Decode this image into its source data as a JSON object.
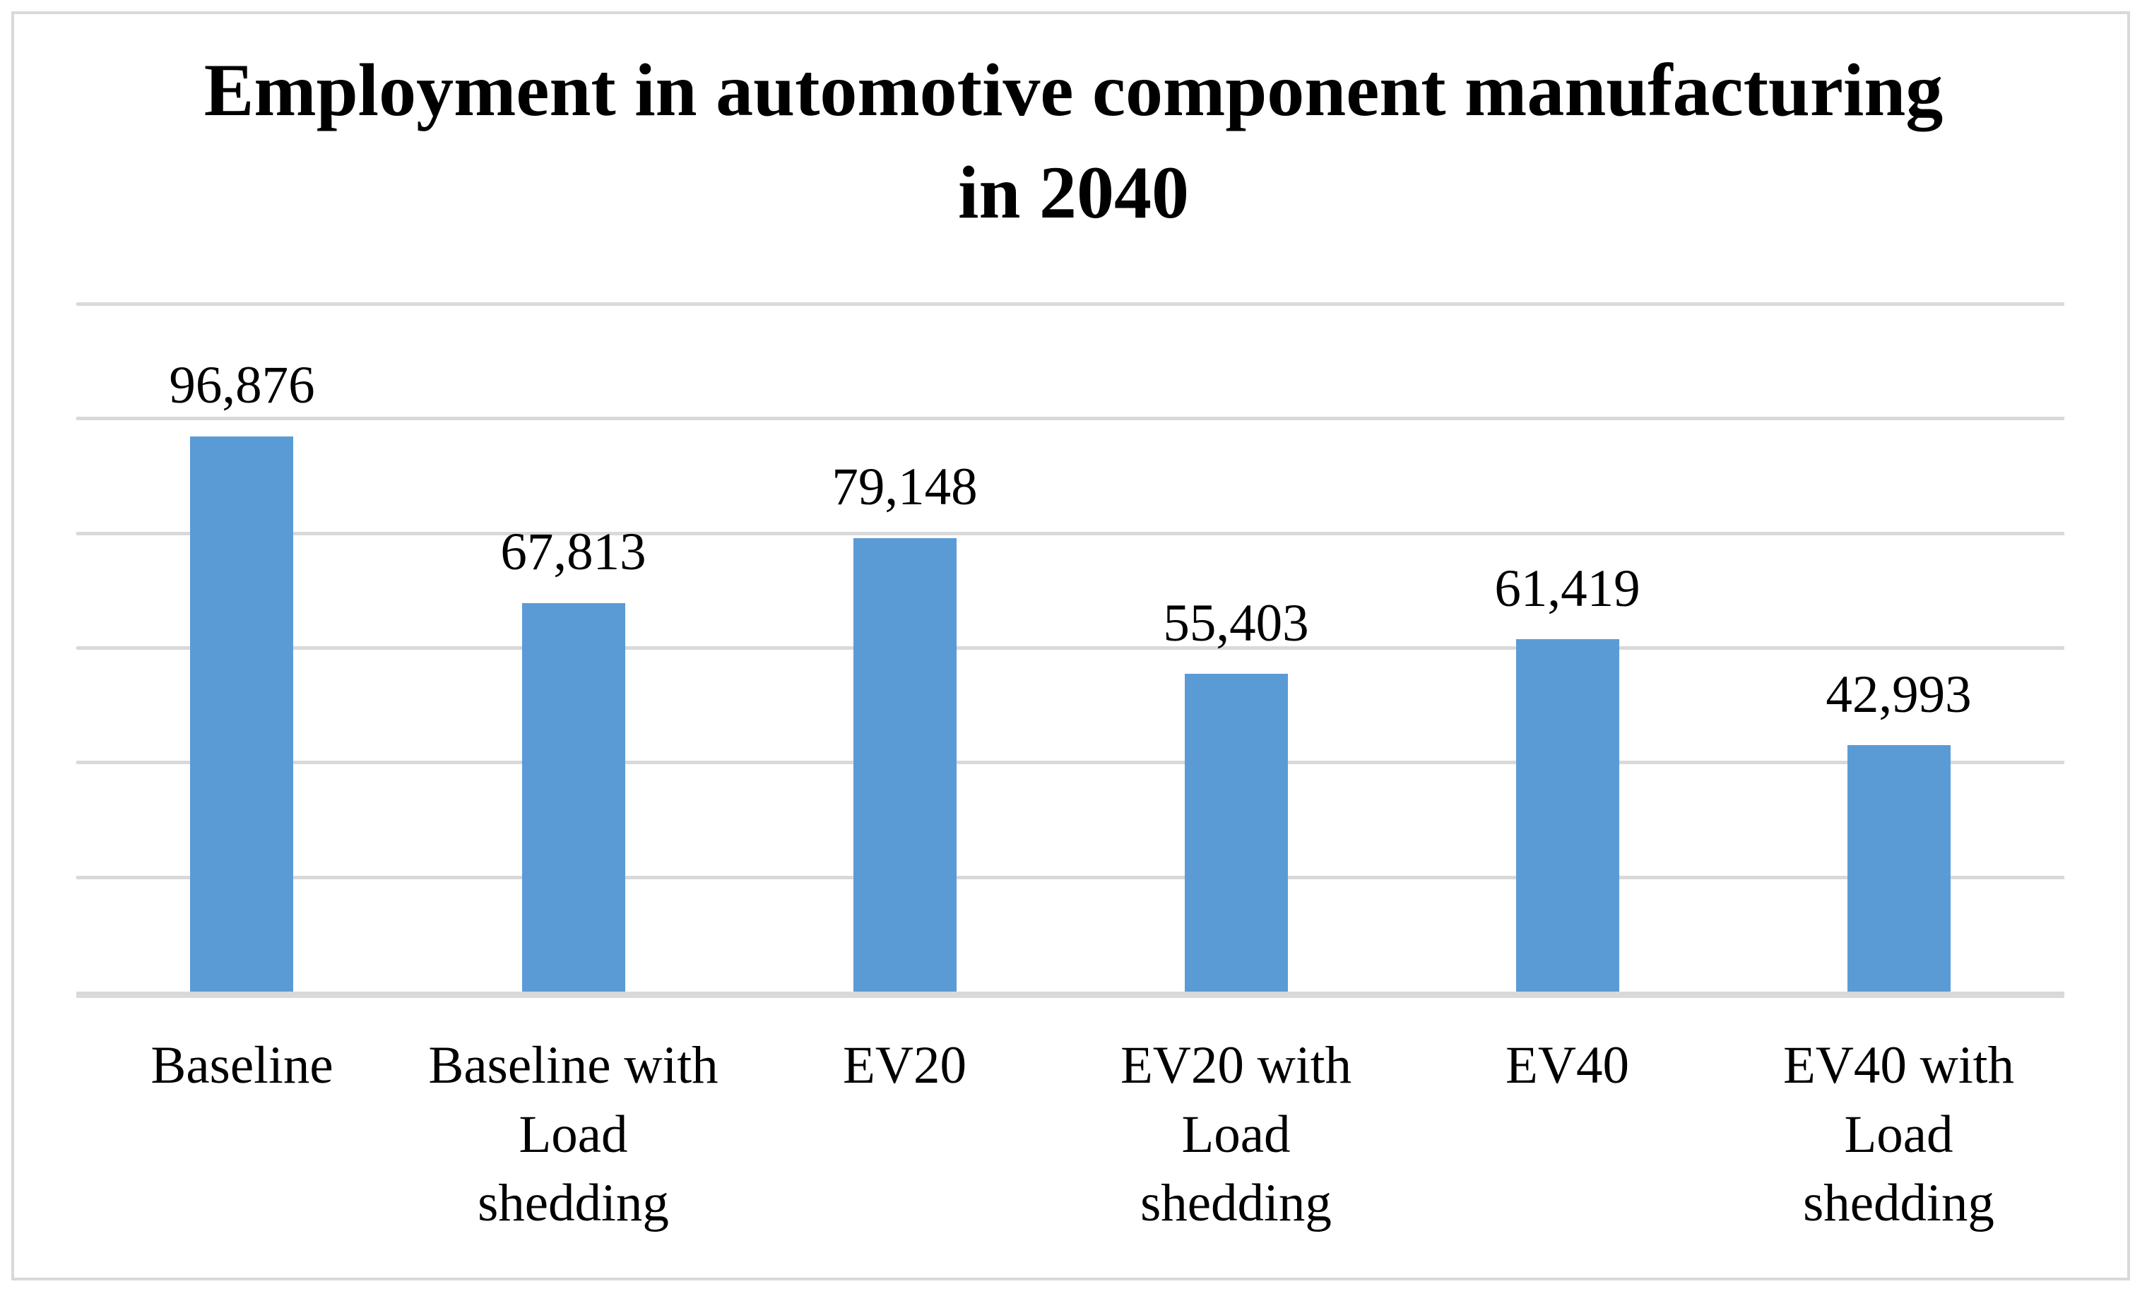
{
  "figure": {
    "title_line1": "Employment in automotive component manufacturing",
    "title_line2": "in 2040"
  },
  "chart_data": {
    "type": "bar",
    "title": "Employment in automotive component manufacturing in 2040",
    "categories": [
      "Baseline",
      "Baseline with Load shedding",
      "EV20",
      "EV20 with Load shedding",
      "EV40",
      "EV40 with Load shedding"
    ],
    "category_lines": [
      [
        "Baseline"
      ],
      [
        "Baseline with",
        "Load",
        "shedding"
      ],
      [
        "EV20"
      ],
      [
        "EV20 with",
        "Load",
        "shedding"
      ],
      [
        "EV40"
      ],
      [
        "EV40 with",
        "Load",
        "shedding"
      ]
    ],
    "category_ids": [
      "baseline",
      "baseline-load-shedding",
      "ev20",
      "ev20-load-shedding",
      "ev40",
      "ev40-load-shedding"
    ],
    "values": [
      96876,
      67813,
      79148,
      55403,
      61419,
      42993
    ],
    "data_labels": [
      "96,876",
      "67,813",
      "79,148",
      "55,403",
      "61,419",
      "42,993"
    ],
    "xlabel": "",
    "ylabel": "",
    "y_axis": {
      "min": 0,
      "max": 120000,
      "gridline_interval": 20000,
      "tick_labels_visible": false
    },
    "grid": true,
    "legend": "none",
    "bar_color": "#5B9BD5",
    "gridline_color": "#D9D9D9",
    "axis_line_color": "#D9D9D9",
    "border_color": "#D9D9D9",
    "text_color": "#000000",
    "background_color": "#FFFFFF"
  }
}
